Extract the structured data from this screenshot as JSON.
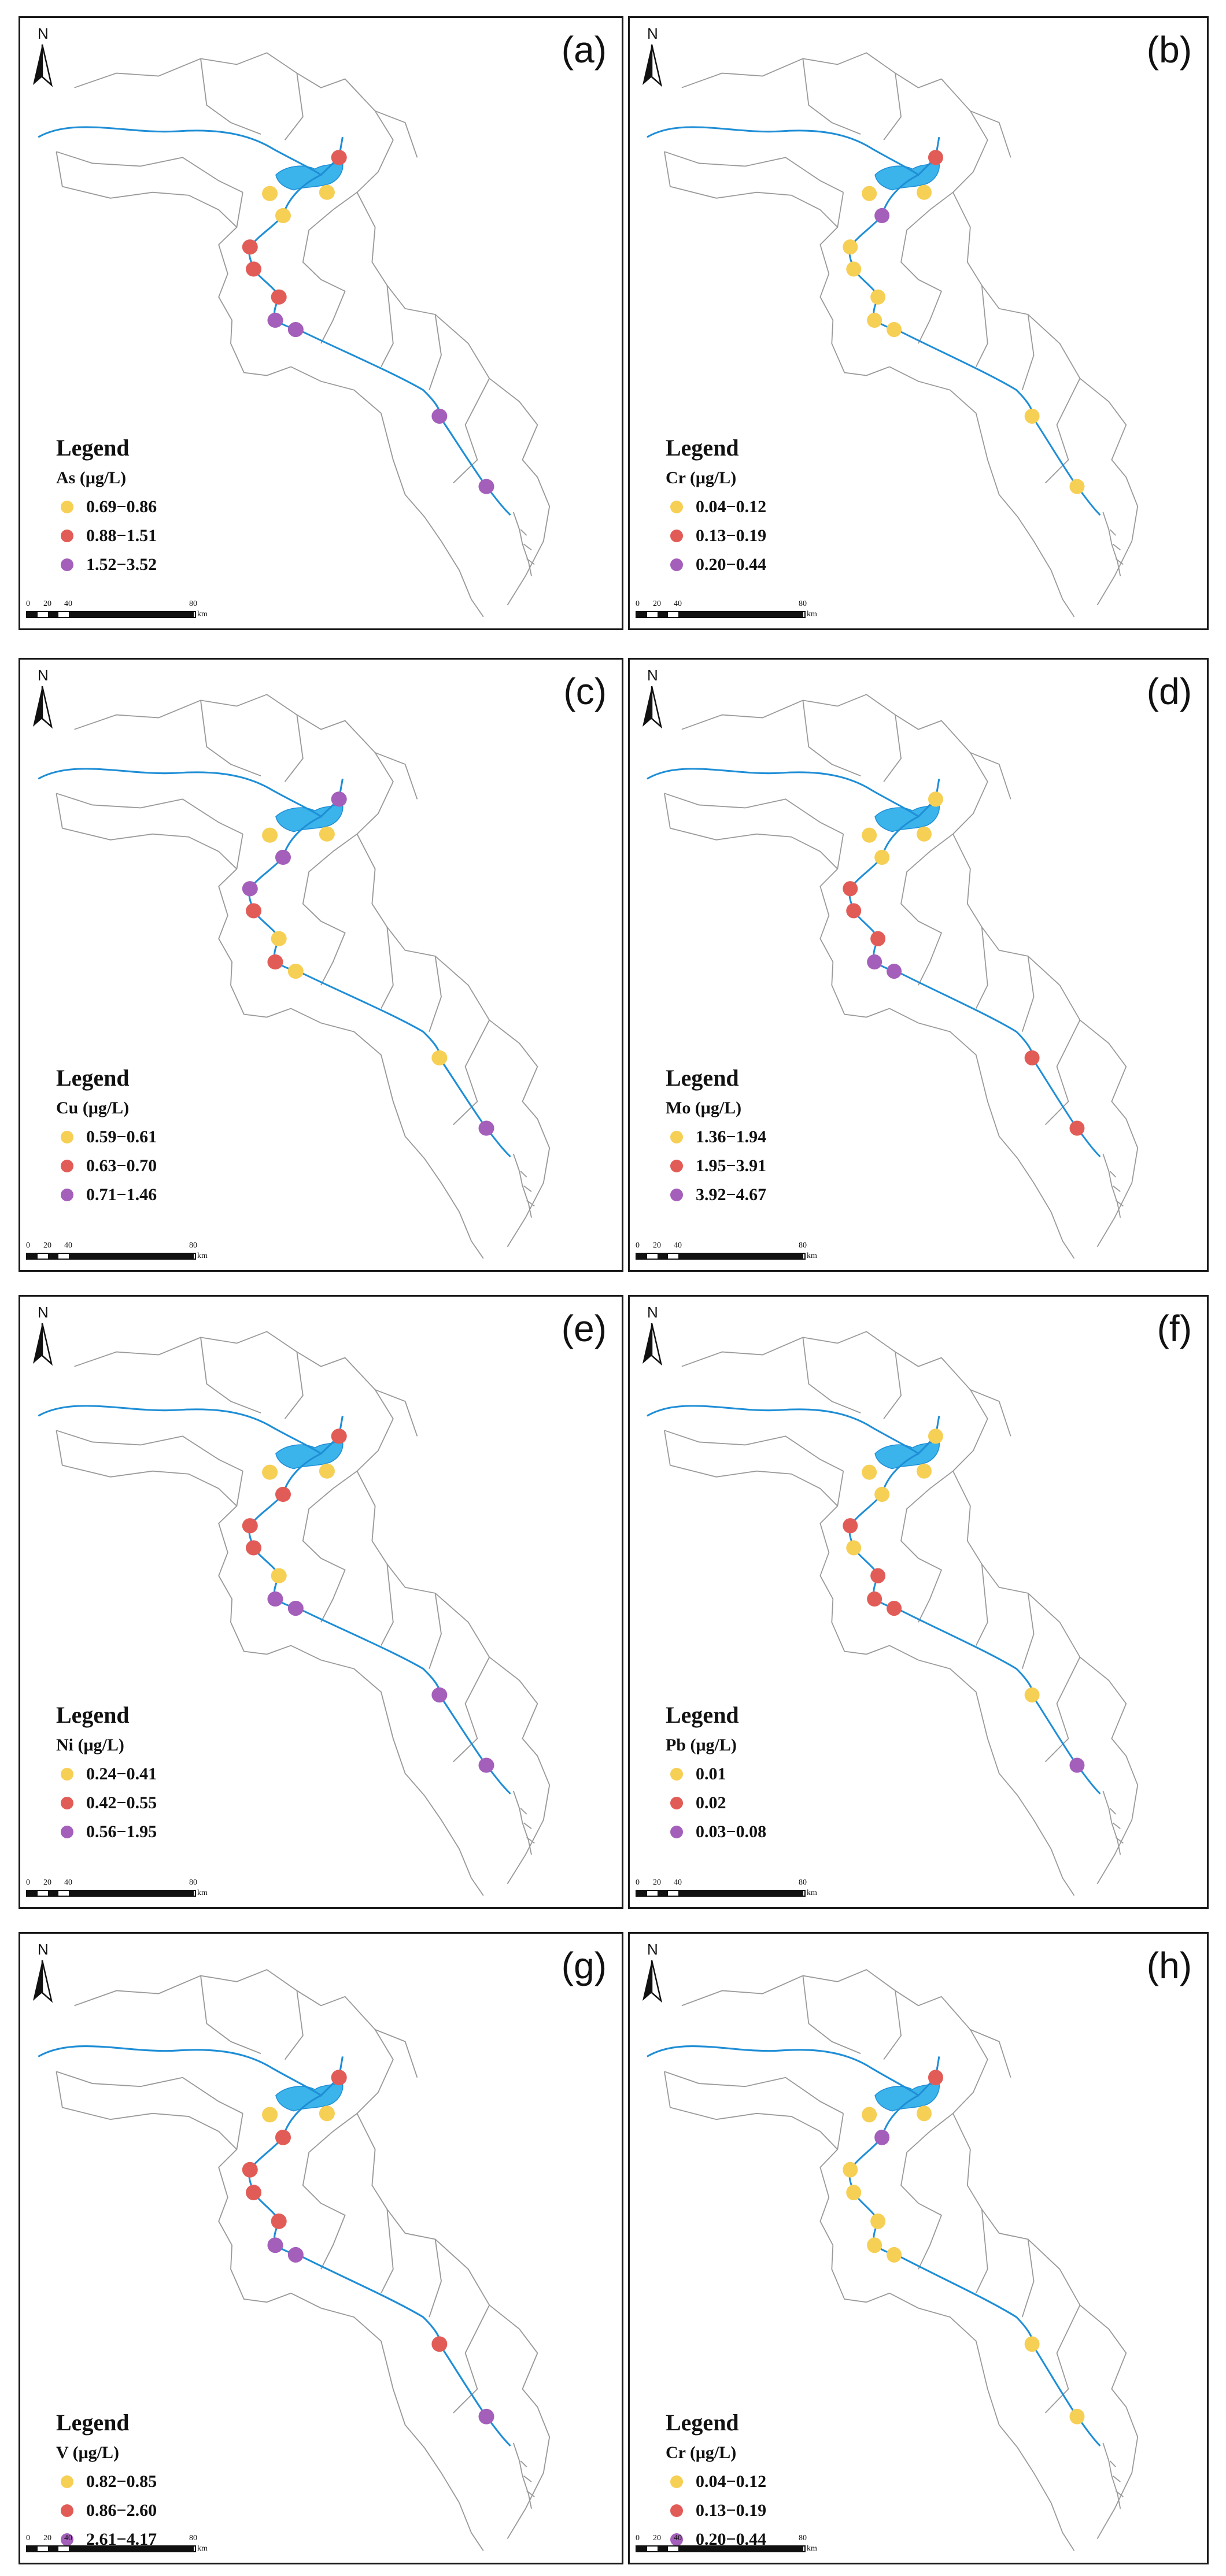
{
  "north_letter": "N",
  "scale": {
    "ticks": [
      "0",
      "20",
      "40",
      "80"
    ],
    "unit": "km"
  },
  "legend_title": "Legend",
  "colors": {
    "yellow": "#f6cf55",
    "red": "#e25c57",
    "purple": "#a45fba",
    "river": "#1f8ed6",
    "lake": "#3ab4ea",
    "boundary": "#9a9a9a"
  },
  "panels": [
    {
      "label": "(a)",
      "element": "As (μg/L)",
      "classes": [
        {
          "range": "0.69−0.86",
          "color": "#f6cf55"
        },
        {
          "range": "0.88−1.51",
          "color": "#e25c57"
        },
        {
          "range": "1.52−3.52",
          "color": "#a45fba"
        }
      ],
      "sites": [
        "red",
        "yellow",
        "yellow",
        "yellow",
        "red",
        "red",
        "red",
        "purple",
        "purple",
        "purple",
        "purple"
      ]
    },
    {
      "label": "(b)",
      "element": "Cr (μg/L)",
      "classes": [
        {
          "range": "0.04−0.12",
          "color": "#f6cf55"
        },
        {
          "range": "0.13−0.19",
          "color": "#e25c57"
        },
        {
          "range": "0.20−0.44",
          "color": "#a45fba"
        }
      ],
      "sites": [
        "red",
        "yellow",
        "yellow",
        "purple",
        "yellow",
        "yellow",
        "yellow",
        "yellow",
        "yellow",
        "yellow",
        "yellow"
      ]
    },
    {
      "label": "(c)",
      "element": "Cu (μg/L)",
      "classes": [
        {
          "range": "0.59−0.61",
          "color": "#f6cf55"
        },
        {
          "range": "0.63−0.70",
          "color": "#e25c57"
        },
        {
          "range": "0.71−1.46",
          "color": "#a45fba"
        }
      ],
      "sites": [
        "purple",
        "yellow",
        "yellow",
        "purple",
        "purple",
        "red",
        "yellow",
        "red",
        "yellow",
        "yellow",
        "purple"
      ]
    },
    {
      "label": "(d)",
      "element": "Mo (μg/L)",
      "classes": [
        {
          "range": "1.36−1.94",
          "color": "#f6cf55"
        },
        {
          "range": "1.95−3.91",
          "color": "#e25c57"
        },
        {
          "range": "3.92−4.67",
          "color": "#a45fba"
        }
      ],
      "sites": [
        "yellow",
        "yellow",
        "yellow",
        "yellow",
        "red",
        "red",
        "red",
        "purple",
        "purple",
        "red",
        "red"
      ]
    },
    {
      "label": "(e)",
      "element": "Ni (μg/L)",
      "classes": [
        {
          "range": "0.24−0.41",
          "color": "#f6cf55"
        },
        {
          "range": "0.42−0.55",
          "color": "#e25c57"
        },
        {
          "range": "0.56−1.95",
          "color": "#a45fba"
        }
      ],
      "sites": [
        "red",
        "yellow",
        "yellow",
        "red",
        "red",
        "red",
        "yellow",
        "purple",
        "purple",
        "purple",
        "purple"
      ]
    },
    {
      "label": "(f)",
      "element": "Pb (μg/L)",
      "classes": [
        {
          "range": "0.01",
          "color": "#f6cf55"
        },
        {
          "range": "0.02",
          "color": "#e25c57"
        },
        {
          "range": "0.03−0.08",
          "color": "#a45fba"
        }
      ],
      "sites": [
        "yellow",
        "yellow",
        "yellow",
        "yellow",
        "red",
        "yellow",
        "red",
        "red",
        "red",
        "yellow",
        "purple"
      ]
    },
    {
      "label": "(g)",
      "element": "V (μg/L)",
      "classes": [
        {
          "range": "0.82−0.85",
          "color": "#f6cf55"
        },
        {
          "range": "0.86−2.60",
          "color": "#e25c57"
        },
        {
          "range": "2.61−4.17",
          "color": "#a45fba"
        }
      ],
      "sites": [
        "red",
        "yellow",
        "yellow",
        "red",
        "red",
        "red",
        "red",
        "purple",
        "purple",
        "red",
        "purple"
      ]
    },
    {
      "label": "(h)",
      "element": "Cr (μg/L)",
      "classes": [
        {
          "range": "0.04−0.12",
          "color": "#f6cf55"
        },
        {
          "range": "0.13−0.19",
          "color": "#e25c57"
        },
        {
          "range": "0.20−0.44",
          "color": "#a45fba"
        }
      ],
      "sites": [
        "red",
        "yellow",
        "yellow",
        "purple",
        "yellow",
        "yellow",
        "yellow",
        "yellow",
        "yellow",
        "yellow",
        "yellow"
      ]
    }
  ]
}
